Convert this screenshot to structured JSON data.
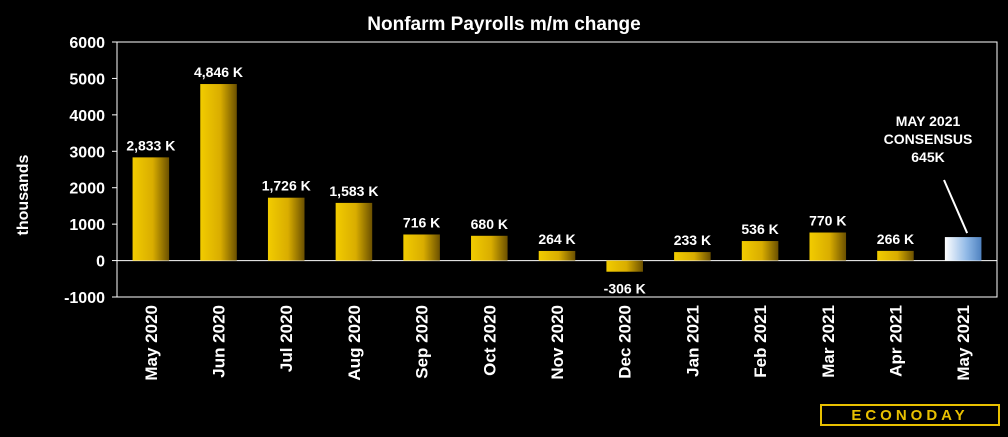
{
  "chart_data": {
    "type": "bar",
    "title": "Nonfarm Payrolls m/m change",
    "ylabel": "thousands",
    "xlabel": "",
    "ylim": [
      -1000,
      6000
    ],
    "yticks": [
      6000,
      5000,
      4000,
      3000,
      2000,
      1000,
      0,
      -1000
    ],
    "categories": [
      "May 2020",
      "Jun 2020",
      "Jul 2020",
      "Aug 2020",
      "Sep 2020",
      "Oct 2020",
      "Nov 2020",
      "Dec 2020",
      "Jan 2021",
      "Feb 2021",
      "Mar 2021",
      "Apr 2021",
      "May 2021"
    ],
    "values": [
      2833,
      4846,
      1726,
      1583,
      716,
      680,
      264,
      -306,
      233,
      536,
      770,
      266,
      645
    ],
    "data_labels": [
      "2,833 K",
      "4,846 K",
      "1,726 K",
      "1,583 K",
      "716 K",
      "680 K",
      "264 K",
      "-306 K",
      "233 K",
      "536 K",
      "770 K",
      "266 K",
      ""
    ],
    "annotation": {
      "lines": [
        "MAY 2021",
        "CONSENSUS",
        "645K"
      ]
    },
    "colors": {
      "bar": "#e8c000",
      "consensus_bar": "#6fa0d8",
      "background": "#000000"
    },
    "grid": false,
    "legend": "none"
  },
  "brand": {
    "logo_text": "ECONODAY"
  }
}
